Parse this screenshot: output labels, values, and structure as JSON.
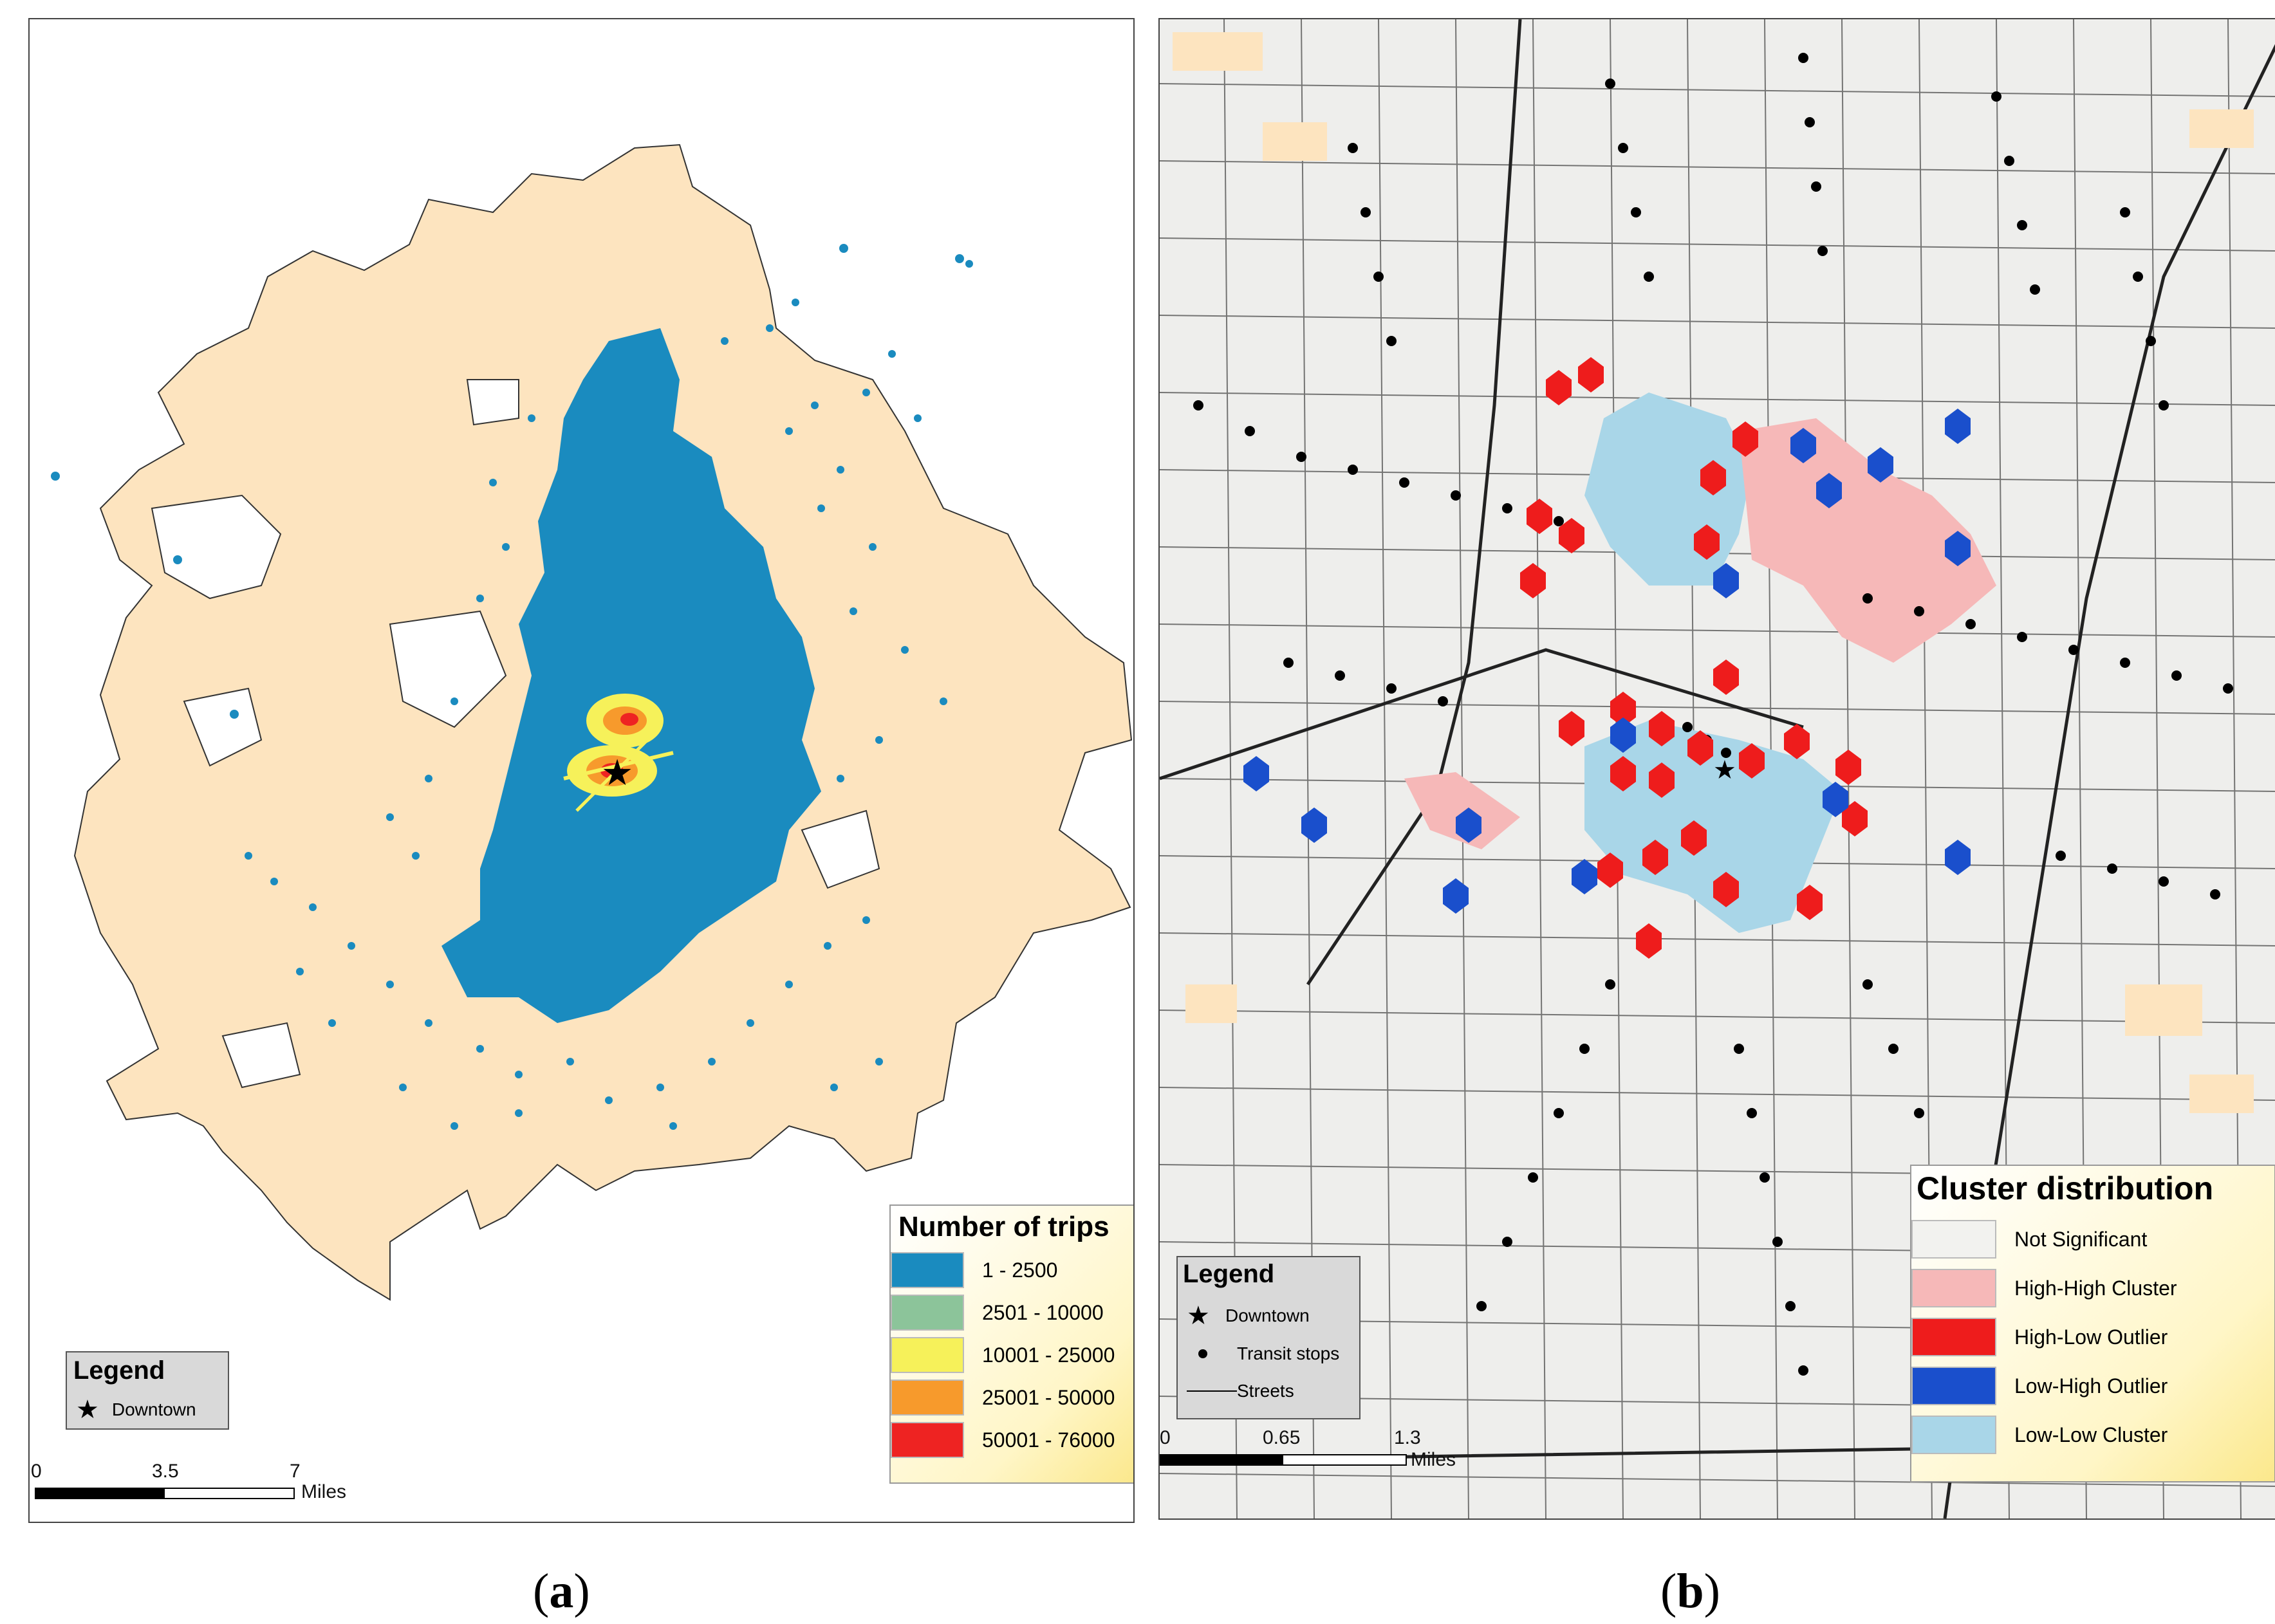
{
  "panel_a": {
    "caption_letter": "a",
    "legend": {
      "title": "Legend",
      "item": "Downtown"
    },
    "trips_legend": {
      "title": "Number of trips",
      "classes": [
        {
          "label": "1 - 2500",
          "color": "#1a8bbf"
        },
        {
          "label": "2501 - 10000",
          "color": "#8cc49a"
        },
        {
          "label": "10001 - 25000",
          "color": "#f6f15a"
        },
        {
          "label": "25001 - 50000",
          "color": "#f79a2c"
        },
        {
          "label": "50001 - 76000",
          "color": "#ee2322"
        }
      ]
    },
    "scale": {
      "t0": "0",
      "t1": "3.5",
      "t2": "7",
      "unit": "Miles"
    }
  },
  "panel_b": {
    "caption_letter": "b",
    "legend": {
      "title": "Legend",
      "items": [
        "Downtown",
        "Transit stops",
        "Streets"
      ]
    },
    "cluster_legend": {
      "title": "Cluster distribution",
      "classes": [
        {
          "label": "Not Significant",
          "color": "#f2f2ef"
        },
        {
          "label": "High-High Cluster",
          "color": "#f6b8b8"
        },
        {
          "label": "High-Low Outlier",
          "color": "#ee1c1c"
        },
        {
          "label": "Low-High Outlier",
          "color": "#1a4fcc"
        },
        {
          "label": "Low-Low Cluster",
          "color": "#a9d6e8"
        }
      ]
    },
    "scale": {
      "t0": "0",
      "t1": "0.65",
      "t2": "1.3",
      "unit": "Miles"
    }
  },
  "colors": {
    "city": "#fde4bf",
    "trips_base": "#1a8bbf"
  }
}
